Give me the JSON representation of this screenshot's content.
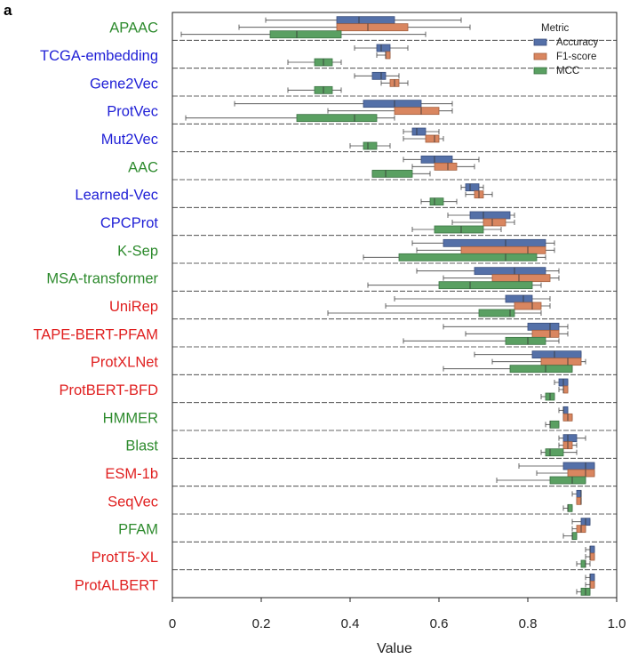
{
  "panel_label": "a",
  "colors": {
    "group_colors": {
      "green": "#2e8b2e",
      "blue": "#1f1fd6",
      "red": "#e02020"
    },
    "series_fill": {
      "Accuracy": "#5470a8",
      "F1-score": "#d98660",
      "MCC": "#5aa062"
    },
    "series_edge": {
      "Accuracy": "#3a4f7d",
      "F1-score": "#a4603f",
      "MCC": "#3c7445"
    }
  },
  "chart_data": {
    "type": "boxplot",
    "orientation": "horizontal",
    "title": "",
    "xlabel": "Value",
    "ylabel": "",
    "xlim": [
      0,
      1.0
    ],
    "xticks": [
      0,
      0.2,
      0.4,
      0.6,
      0.8,
      1.0
    ],
    "xtick_labels": [
      "0",
      "0.2",
      "0.4",
      "0.6",
      "0.8",
      "1.0"
    ],
    "grid": false,
    "legend": {
      "title": "Metric",
      "placement": "top-right",
      "entries": [
        "Accuracy",
        "F1-score",
        "MCC"
      ]
    },
    "series_names": [
      "Accuracy",
      "F1-score",
      "MCC"
    ],
    "categories": [
      {
        "name": "APAAC",
        "group": "green",
        "boxes": [
          [
            0.21,
            0.37,
            0.42,
            0.5,
            0.65
          ],
          [
            0.15,
            0.37,
            0.44,
            0.53,
            0.67
          ],
          [
            0.02,
            0.22,
            0.28,
            0.38,
            0.57
          ]
        ]
      },
      {
        "name": "TCGA-embedding",
        "group": "blue",
        "boxes": [
          [
            0.41,
            0.46,
            0.47,
            0.49,
            0.53
          ],
          [
            0.46,
            0.48,
            0.48,
            0.49,
            0.49
          ],
          [
            0.26,
            0.32,
            0.34,
            0.36,
            0.38
          ]
        ]
      },
      {
        "name": "Gene2Vec",
        "group": "blue",
        "boxes": [
          [
            0.41,
            0.45,
            0.47,
            0.48,
            0.51
          ],
          [
            0.47,
            0.49,
            0.5,
            0.51,
            0.53
          ],
          [
            0.26,
            0.32,
            0.34,
            0.36,
            0.38
          ]
        ]
      },
      {
        "name": "ProtVec",
        "group": "blue",
        "boxes": [
          [
            0.14,
            0.43,
            0.5,
            0.56,
            0.63
          ],
          [
            0.35,
            0.5,
            0.56,
            0.6,
            0.63
          ],
          [
            0.03,
            0.28,
            0.41,
            0.46,
            0.5
          ]
        ]
      },
      {
        "name": "Mut2Vec",
        "group": "blue",
        "boxes": [
          [
            0.52,
            0.54,
            0.55,
            0.57,
            0.6
          ],
          [
            0.52,
            0.57,
            0.59,
            0.6,
            0.61
          ],
          [
            0.4,
            0.43,
            0.44,
            0.46,
            0.49
          ]
        ]
      },
      {
        "name": "AAC",
        "group": "green",
        "boxes": [
          [
            0.52,
            0.56,
            0.59,
            0.63,
            0.69
          ],
          [
            0.54,
            0.59,
            0.62,
            0.64,
            0.68
          ],
          [
            0.45,
            0.45,
            0.48,
            0.54,
            0.58
          ]
        ]
      },
      {
        "name": "Learned-Vec",
        "group": "blue",
        "boxes": [
          [
            0.65,
            0.66,
            0.67,
            0.69,
            0.7
          ],
          [
            0.66,
            0.68,
            0.69,
            0.7,
            0.72
          ],
          [
            0.56,
            0.58,
            0.59,
            0.61,
            0.64
          ]
        ]
      },
      {
        "name": "CPCProt",
        "group": "blue",
        "boxes": [
          [
            0.62,
            0.67,
            0.7,
            0.76,
            0.77
          ],
          [
            0.63,
            0.7,
            0.72,
            0.75,
            0.77
          ],
          [
            0.54,
            0.59,
            0.65,
            0.7,
            0.74
          ]
        ]
      },
      {
        "name": "K-Sep",
        "group": "green",
        "boxes": [
          [
            0.54,
            0.61,
            0.75,
            0.84,
            0.86
          ],
          [
            0.55,
            0.65,
            0.8,
            0.84,
            0.86
          ],
          [
            0.43,
            0.51,
            0.75,
            0.82,
            0.84
          ]
        ]
      },
      {
        "name": "MSA-transformer",
        "group": "green",
        "boxes": [
          [
            0.55,
            0.68,
            0.77,
            0.84,
            0.87
          ],
          [
            0.61,
            0.72,
            0.78,
            0.85,
            0.87
          ],
          [
            0.44,
            0.6,
            0.67,
            0.81,
            0.83
          ]
        ]
      },
      {
        "name": "UniRep",
        "group": "red",
        "boxes": [
          [
            0.5,
            0.75,
            0.79,
            0.81,
            0.85
          ],
          [
            0.48,
            0.77,
            0.81,
            0.83,
            0.85
          ],
          [
            0.35,
            0.69,
            0.76,
            0.77,
            0.83
          ]
        ]
      },
      {
        "name": "TAPE-BERT-PFAM",
        "group": "red",
        "boxes": [
          [
            0.61,
            0.8,
            0.85,
            0.87,
            0.89
          ],
          [
            0.66,
            0.81,
            0.85,
            0.87,
            0.89
          ],
          [
            0.52,
            0.75,
            0.8,
            0.84,
            0.87
          ]
        ]
      },
      {
        "name": "ProtXLNet",
        "group": "red",
        "boxes": [
          [
            0.68,
            0.81,
            0.86,
            0.92,
            0.92
          ],
          [
            0.72,
            0.83,
            0.89,
            0.92,
            0.93
          ],
          [
            0.61,
            0.76,
            0.84,
            0.9,
            0.9
          ]
        ]
      },
      {
        "name": "ProtBERT-BFD",
        "group": "red",
        "boxes": [
          [
            0.86,
            0.87,
            0.88,
            0.89,
            0.89
          ],
          [
            0.87,
            0.88,
            0.88,
            0.89,
            0.89
          ],
          [
            0.83,
            0.84,
            0.85,
            0.86,
            0.86
          ]
        ]
      },
      {
        "name": "HMMER",
        "group": "green",
        "boxes": [
          [
            0.87,
            0.88,
            0.88,
            0.89,
            0.89
          ],
          [
            0.88,
            0.88,
            0.89,
            0.9,
            0.9
          ],
          [
            0.84,
            0.85,
            0.85,
            0.87,
            0.87
          ]
        ]
      },
      {
        "name": "Blast",
        "group": "green",
        "boxes": [
          [
            0.87,
            0.88,
            0.89,
            0.91,
            0.93
          ],
          [
            0.87,
            0.88,
            0.89,
            0.9,
            0.91
          ],
          [
            0.83,
            0.84,
            0.85,
            0.88,
            0.91
          ]
        ]
      },
      {
        "name": "ESM-1b",
        "group": "red",
        "boxes": [
          [
            0.78,
            0.88,
            0.93,
            0.95,
            0.95
          ],
          [
            0.82,
            0.89,
            0.93,
            0.95,
            0.95
          ],
          [
            0.73,
            0.85,
            0.9,
            0.93,
            0.93
          ]
        ]
      },
      {
        "name": "SeqVec",
        "group": "red",
        "boxes": [
          [
            0.9,
            0.91,
            0.92,
            0.92,
            0.92
          ],
          [
            0.91,
            0.91,
            0.92,
            0.92,
            0.92
          ],
          [
            0.88,
            0.89,
            0.89,
            0.9,
            0.9
          ]
        ]
      },
      {
        "name": "PFAM",
        "group": "green",
        "boxes": [
          [
            0.9,
            0.92,
            0.93,
            0.94,
            0.94
          ],
          [
            0.9,
            0.91,
            0.92,
            0.93,
            0.93
          ],
          [
            0.88,
            0.9,
            0.9,
            0.91,
            0.91
          ]
        ]
      },
      {
        "name": "ProtT5-XL",
        "group": "red",
        "boxes": [
          [
            0.93,
            0.94,
            0.94,
            0.95,
            0.95
          ],
          [
            0.93,
            0.94,
            0.94,
            0.95,
            0.95
          ],
          [
            0.91,
            0.92,
            0.93,
            0.93,
            0.94
          ]
        ]
      },
      {
        "name": "ProtALBERT",
        "group": "red",
        "boxes": [
          [
            0.93,
            0.94,
            0.94,
            0.95,
            0.95
          ],
          [
            0.93,
            0.94,
            0.94,
            0.95,
            0.95
          ],
          [
            0.91,
            0.92,
            0.93,
            0.94,
            0.94
          ]
        ]
      }
    ]
  }
}
